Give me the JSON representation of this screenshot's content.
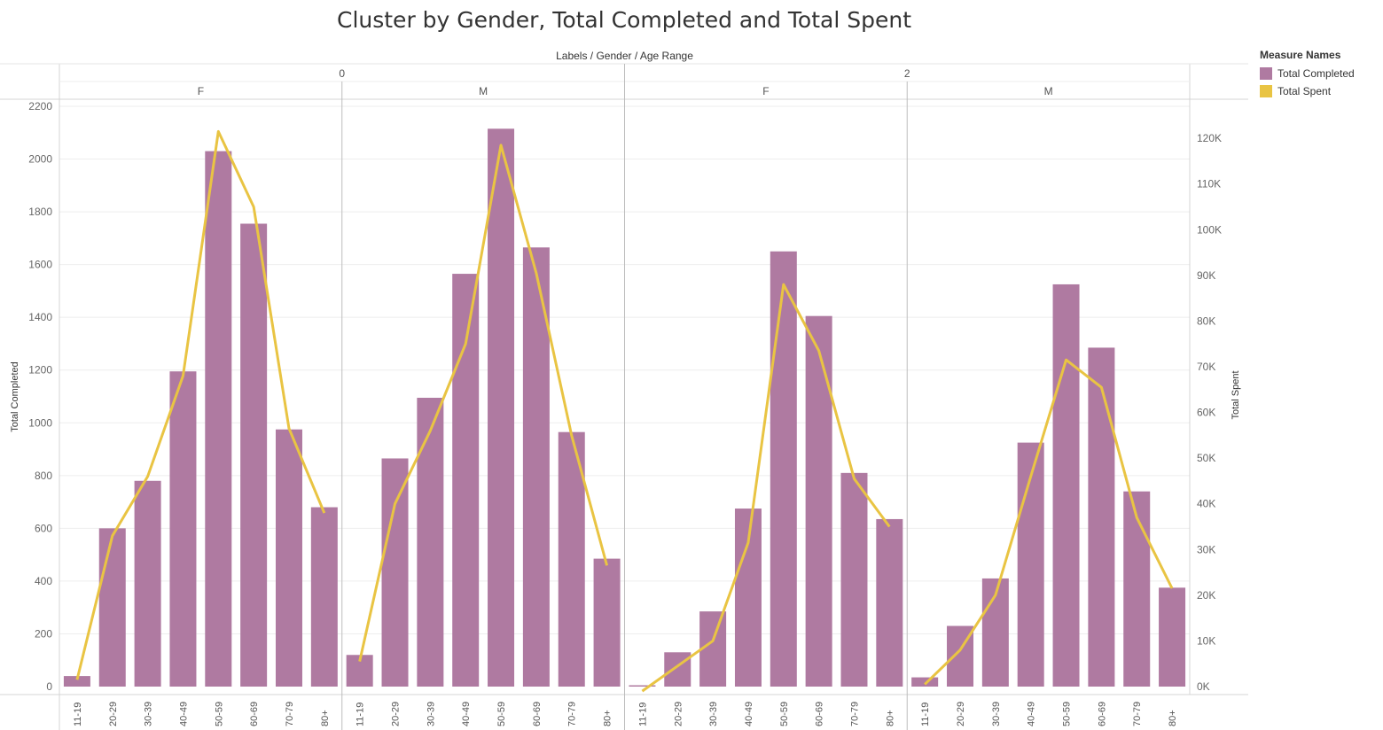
{
  "chart_data": {
    "type": "bar",
    "title": "Cluster by Gender, Total Completed and Total Spent",
    "column_header_title": "Labels / Gender / Age Range",
    "label_values": [
      "0",
      "2"
    ],
    "panes": [
      {
        "label": "0",
        "gender": "F",
        "completed": [
          40,
          600,
          780,
          1195,
          2030,
          1755,
          975,
          680
        ],
        "spent": [
          1500,
          33000,
          46000,
          68000,
          121500,
          105000,
          56500,
          38000
        ]
      },
      {
        "label": "0",
        "gender": "M",
        "completed": [
          120,
          865,
          1095,
          1565,
          2115,
          1665,
          965,
          485
        ],
        "spent": [
          5500,
          40000,
          56000,
          75000,
          118500,
          90500,
          55000,
          26500
        ]
      },
      {
        "label": "2",
        "gender": "F",
        "completed": [
          5,
          130,
          285,
          675,
          1650,
          1405,
          810,
          635
        ],
        "spent": [
          -1000,
          4500,
          10000,
          31500,
          88000,
          73500,
          45500,
          35000
        ]
      },
      {
        "label": "2",
        "gender": "M",
        "completed": [
          35,
          230,
          410,
          925,
          1525,
          1285,
          740,
          375
        ],
        "spent": [
          500,
          8000,
          20000,
          46000,
          71500,
          65500,
          37000,
          21500
        ]
      }
    ],
    "categories": [
      "11-19",
      "20-29",
      "30-39",
      "40-49",
      "50-59",
      "60-69",
      "70-79",
      "80+"
    ],
    "series": [
      {
        "name": "Total Completed",
        "type": "bar",
        "axis": "left",
        "color": "#af7aa1"
      },
      {
        "name": "Total Spent",
        "type": "line",
        "axis": "right",
        "color": "#e9c443"
      }
    ],
    "left_axis": {
      "label": "Total Completed",
      "ylim": [
        0,
        2200
      ],
      "ticks": [
        0,
        200,
        400,
        600,
        800,
        1000,
        1200,
        1400,
        1600,
        1800,
        2000,
        2200
      ]
    },
    "right_axis": {
      "label": "Total Spent",
      "ylim": [
        0,
        127000
      ],
      "ticks": [
        0,
        10000,
        20000,
        30000,
        40000,
        50000,
        60000,
        70000,
        80000,
        90000,
        100000,
        110000,
        120000
      ],
      "tick_labels": [
        "0K",
        "10K",
        "20K",
        "30K",
        "40K",
        "50K",
        "60K",
        "70K",
        "80K",
        "90K",
        "100K",
        "110K",
        "120K"
      ]
    },
    "legend": {
      "title": "Measure Names",
      "placement": "top-right",
      "items": [
        {
          "label": "Total Completed",
          "color": "#af7aa1"
        },
        {
          "label": "Total Spent",
          "color": "#e9c443"
        }
      ]
    },
    "grid": true
  }
}
